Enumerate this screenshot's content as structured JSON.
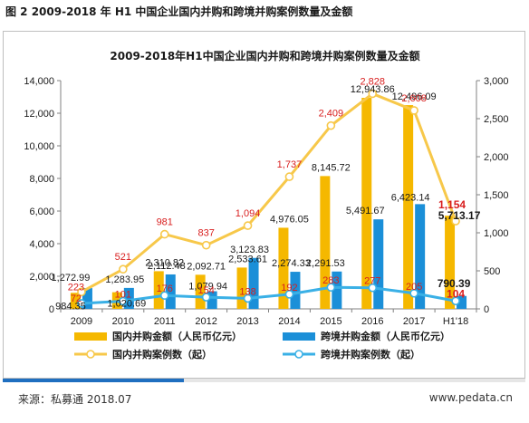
{
  "caption": "图 2    2009-2018 年 H1 中国企业国内并购和跨境并购案例数量及金额",
  "footer": {
    "source": "来源：私募通  2018.07",
    "website": "www.pedata.cn"
  },
  "colors": {
    "domestic": "#f5b800",
    "cross": "#1b8fd8",
    "domestic_label": "#d81e1e",
    "axis_text": "#1a1a1a"
  },
  "chart_data": {
    "type": "bar",
    "title": "2009-2018年H1中国企业国内并购和跨境并购案例数量及金额",
    "categories": [
      "2009",
      "2010",
      "2011",
      "2012",
      "2013",
      "2014",
      "2015",
      "2016",
      "2017",
      "H1'18"
    ],
    "y_left": {
      "min": 0,
      "max": 14000,
      "ticks": [
        "0",
        "2,000",
        "4,000",
        "6,000",
        "8,000",
        "10,000",
        "12,000",
        "14,000"
      ]
    },
    "y_right": {
      "min": 0,
      "max": 3000,
      "ticks": [
        "0",
        "500",
        "1,000",
        "1,500",
        "2,000",
        "2,500",
        "3,000"
      ]
    },
    "grid": false,
    "legend_position": "bottom",
    "series": [
      {
        "name": "国内并购金额（人民币亿元）",
        "type": "bar",
        "axis": "left",
        "values": [
          984.35,
          1020.69,
          2310.82,
          2092.71,
          2533.61,
          4976.05,
          8145.72,
          12943.86,
          12496.09,
          5713.17
        ],
        "labels": [
          "984.35",
          "1,020.69",
          "2,310.82",
          "2,092.71",
          "2,533.61",
          "4,976.05",
          "8,145.72",
          "12,943.86",
          "12,496.09",
          "5,713.17"
        ]
      },
      {
        "name": "跨境并购金额（人民币亿元）",
        "type": "bar",
        "axis": "left",
        "values": [
          1272.99,
          1283.95,
          2112.48,
          1079.94,
          3123.83,
          2274.33,
          2291.53,
          5491.67,
          6423.14,
          790.39
        ],
        "labels": [
          "1,272.99",
          "1,283.95",
          "2,112.48",
          "1,079.94",
          "3,123.83",
          "2,274.33",
          "2,291.53",
          "5,491.67",
          "6,423.14",
          "790.39"
        ]
      },
      {
        "name": "国内并购案例数（起）",
        "type": "line",
        "axis": "right",
        "values": [
          223,
          521,
          981,
          837,
          1094,
          1737,
          2409,
          2828,
          2608,
          1154
        ],
        "labels": [
          "223",
          "521",
          "981",
          "837",
          "1,094",
          "1,737",
          "2,409",
          "2,828",
          "2,608",
          "1,154"
        ]
      },
      {
        "name": "跨境并购案例数（起）",
        "type": "line",
        "axis": "right",
        "values": [
          72,
          101,
          176,
          154,
          138,
          192,
          283,
          277,
          205,
          104
        ],
        "labels": [
          "72",
          "101",
          "176",
          "154",
          "138",
          "192",
          "283",
          "277",
          "205",
          "104"
        ]
      }
    ]
  }
}
